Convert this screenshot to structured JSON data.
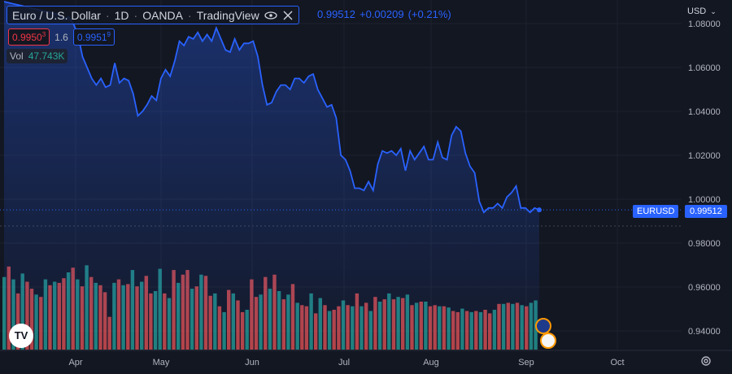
{
  "header": {
    "symbol_name": "Euro / U.S. Dollar",
    "interval": "1D",
    "broker": "OANDA",
    "platform": "TradingView",
    "last_value": "0.99512",
    "change": "+0.00209",
    "change_pct": "(+0.21%)"
  },
  "quote": {
    "bid": "0.9950",
    "bid_sup": "3",
    "spread": "1.6",
    "ask": "0.9951",
    "ask_sup": "9"
  },
  "volume": {
    "label": "Vol",
    "value": "47.743K"
  },
  "currency": "USD",
  "price_tag": {
    "symbol": "EURUSD",
    "value": "0.99512"
  },
  "colors": {
    "line": "#2962ff",
    "vol_up": "#26a69a",
    "vol_down": "#ef5350",
    "background": "#131722"
  },
  "chart_data": {
    "type": "line",
    "y_axis_ticks": [
      "1.08000",
      "1.06000",
      "1.04000",
      "1.02000",
      "1.00000",
      "0.98000",
      "0.96000",
      "0.94000"
    ],
    "x_axis_ticks": [
      "Apr",
      "May",
      "Jun",
      "Jul",
      "Aug",
      "Sep",
      "Oct"
    ],
    "ylim": [
      0.9296,
      1.0846
    ],
    "series": [
      {
        "values": [
          1.09,
          1.0895,
          1.089,
          1.0885,
          1.088,
          1.0875,
          1.087,
          1.0865,
          1.086,
          1.0855,
          1.085,
          1.0845,
          1.084,
          1.082,
          1.083,
          1.08,
          1.075,
          1.065,
          1.06,
          1.055,
          1.052,
          1.055,
          1.051,
          1.052,
          1.062,
          1.053,
          1.055,
          1.054,
          1.048,
          1.038,
          1.04,
          1.043,
          1.047,
          1.045,
          1.055,
          1.059,
          1.056,
          1.063,
          1.072,
          1.07,
          1.074,
          1.073,
          1.076,
          1.072,
          1.075,
          1.072,
          1.078,
          1.073,
          1.068,
          1.067,
          1.073,
          1.068,
          1.071,
          1.071,
          1.072,
          1.065,
          1.052,
          1.043,
          1.044,
          1.049,
          1.052,
          1.052,
          1.05,
          1.055,
          1.055,
          1.053,
          1.056,
          1.057,
          1.05,
          1.046,
          1.042,
          1.043,
          1.037,
          1.02,
          1.018,
          1.013,
          1.005,
          1.005,
          1.004,
          1.008,
          1.004,
          1.016,
          1.022,
          1.021,
          1.022,
          1.02,
          1.023,
          1.013,
          1.022,
          1.018,
          1.021,
          1.024,
          1.018,
          1.018,
          1.026,
          1.019,
          1.018,
          1.029,
          1.033,
          1.031,
          1.021,
          1.015,
          1.012,
          0.999,
          0.994,
          0.996,
          0.996,
          0.998,
          0.996,
          1.001,
          1.003,
          1.006,
          0.996,
          0.996,
          0.994,
          0.996,
          0.99512
        ]
      }
    ],
    "volume": {
      "label": "Vol",
      "values": [
        62,
        71,
        60,
        48,
        65,
        58,
        52,
        47,
        45,
        60,
        55,
        58,
        57,
        61,
        66,
        70,
        60,
        54,
        72,
        62,
        57,
        55,
        49,
        28,
        57,
        60,
        55,
        56,
        68,
        54,
        58,
        63,
        48,
        50,
        69,
        48,
        44,
        68,
        57,
        64,
        68,
        52,
        54,
        64,
        63,
        46,
        48,
        37,
        32,
        51,
        48,
        42,
        32,
        34,
        60,
        45,
        47,
        62,
        52,
        64,
        50,
        43,
        47,
        56,
        40,
        38,
        37,
        48,
        31,
        44,
        38,
        33,
        34,
        37,
        42,
        38,
        37,
        48,
        37,
        40,
        33,
        45,
        41,
        43,
        48,
        43,
        45,
        44,
        47,
        38,
        40,
        41,
        41,
        37,
        38,
        37,
        37,
        36,
        33,
        32,
        35,
        33,
        32,
        33,
        32,
        34,
        31,
        34,
        39,
        39,
        40,
        39,
        40,
        38,
        37,
        40,
        42
      ],
      "up": [
        1,
        0,
        1,
        0,
        1,
        0,
        0,
        1,
        0,
        1,
        0,
        1,
        0,
        0,
        1,
        0,
        1,
        0,
        1,
        0,
        1,
        0,
        0,
        0,
        1,
        0,
        1,
        0,
        1,
        0,
        1,
        0,
        0,
        1,
        1,
        0,
        1,
        0,
        1,
        0,
        0,
        1,
        0,
        1,
        0,
        0,
        1,
        0,
        1,
        0,
        1,
        0,
        0,
        1,
        0,
        0,
        1,
        0,
        1,
        0,
        1,
        0,
        1,
        0,
        1,
        0,
        0,
        1,
        0,
        1,
        0,
        1,
        0,
        0,
        1,
        0,
        1,
        0,
        1,
        0,
        1,
        0,
        1,
        0,
        1,
        0,
        1,
        0,
        1,
        0,
        1,
        0,
        1,
        0,
        0,
        1,
        0,
        1,
        0,
        0,
        1,
        0,
        1,
        0,
        1,
        0,
        0,
        1,
        0,
        1,
        0,
        1,
        0,
        1,
        0,
        1,
        1
      ]
    }
  }
}
